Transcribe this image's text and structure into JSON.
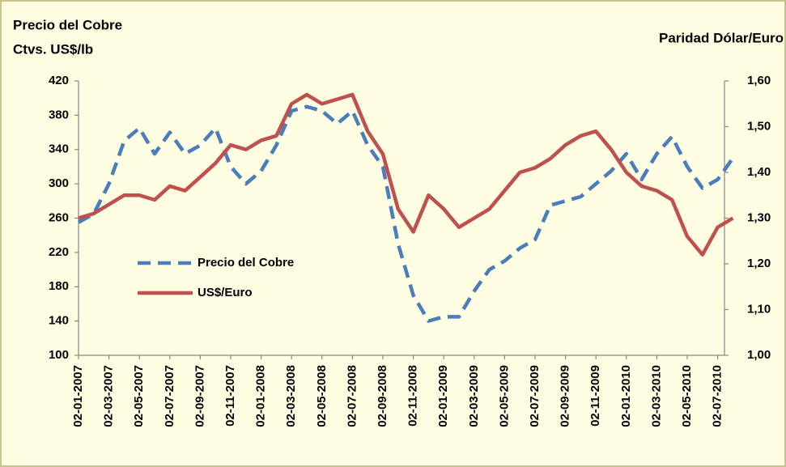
{
  "chart_data": {
    "type": "line",
    "ylabel": [
      "Precio del Cobre",
      "Ctvs. US$/lb"
    ],
    "y2label": "Paridad Dólar/Euro",
    "categories": [
      "02-01-2007",
      null,
      "02-03-2007",
      null,
      "02-05-2007",
      null,
      "02-07-2007",
      null,
      "02-09-2007",
      null,
      "02-11-2007",
      null,
      "02-01-2008",
      null,
      "02-03-2008",
      null,
      "02-05-2008",
      null,
      "02-07-2008",
      null,
      "02-09-2008",
      null,
      "02-11-2008",
      null,
      "02-01-2009",
      null,
      "02-03-2009",
      null,
      "02-05-2009",
      null,
      "02-07-2009",
      null,
      "02-09-2009",
      null,
      "02-11-2009",
      null,
      "02-01-2010",
      null,
      "02-03-2010",
      null,
      "02-05-2010",
      null,
      "02-07-2010",
      null
    ],
    "series": [
      {
        "name": "Precio del Cobre",
        "color": "#4a7ebb",
        "dashed": true,
        "values": [
          255,
          265,
          300,
          350,
          365,
          335,
          360,
          335,
          345,
          365,
          320,
          300,
          315,
          345,
          385,
          390,
          385,
          370,
          385,
          345,
          320,
          230,
          170,
          140,
          145,
          145,
          175,
          200,
          210,
          225,
          235,
          275,
          280,
          285,
          300,
          315,
          335,
          305,
          335,
          355,
          320,
          295,
          305,
          330
        ]
      },
      {
        "name": "US$/Euro",
        "color": "#c0504d",
        "dashed": false,
        "axis": "y2",
        "values": [
          1.3,
          1.31,
          1.33,
          1.35,
          1.35,
          1.34,
          1.37,
          1.36,
          1.39,
          1.42,
          1.46,
          1.45,
          1.47,
          1.48,
          1.55,
          1.57,
          1.55,
          1.56,
          1.57,
          1.49,
          1.44,
          1.32,
          1.27,
          1.35,
          1.32,
          1.28,
          1.3,
          1.32,
          1.36,
          1.4,
          1.41,
          1.43,
          1.46,
          1.48,
          1.49,
          1.45,
          1.4,
          1.37,
          1.36,
          1.34,
          1.26,
          1.22,
          1.28,
          1.3
        ]
      }
    ],
    "ylim": [
      100,
      420
    ],
    "yticks": [
      100,
      140,
      180,
      220,
      260,
      300,
      340,
      380,
      420
    ],
    "y2lim": [
      1.0,
      1.6
    ],
    "y2ticks": [
      {
        "value": 1.0,
        "label": "1,00"
      },
      {
        "value": 1.1,
        "label": "1,10"
      },
      {
        "value": 1.2,
        "label": "1,20"
      },
      {
        "value": 1.3,
        "label": "1,30"
      },
      {
        "value": 1.4,
        "label": "1,40"
      },
      {
        "value": 1.5,
        "label": "1,50"
      },
      {
        "value": 1.6,
        "label": "1,60"
      }
    ],
    "grid": false,
    "legend": "inside-left"
  }
}
